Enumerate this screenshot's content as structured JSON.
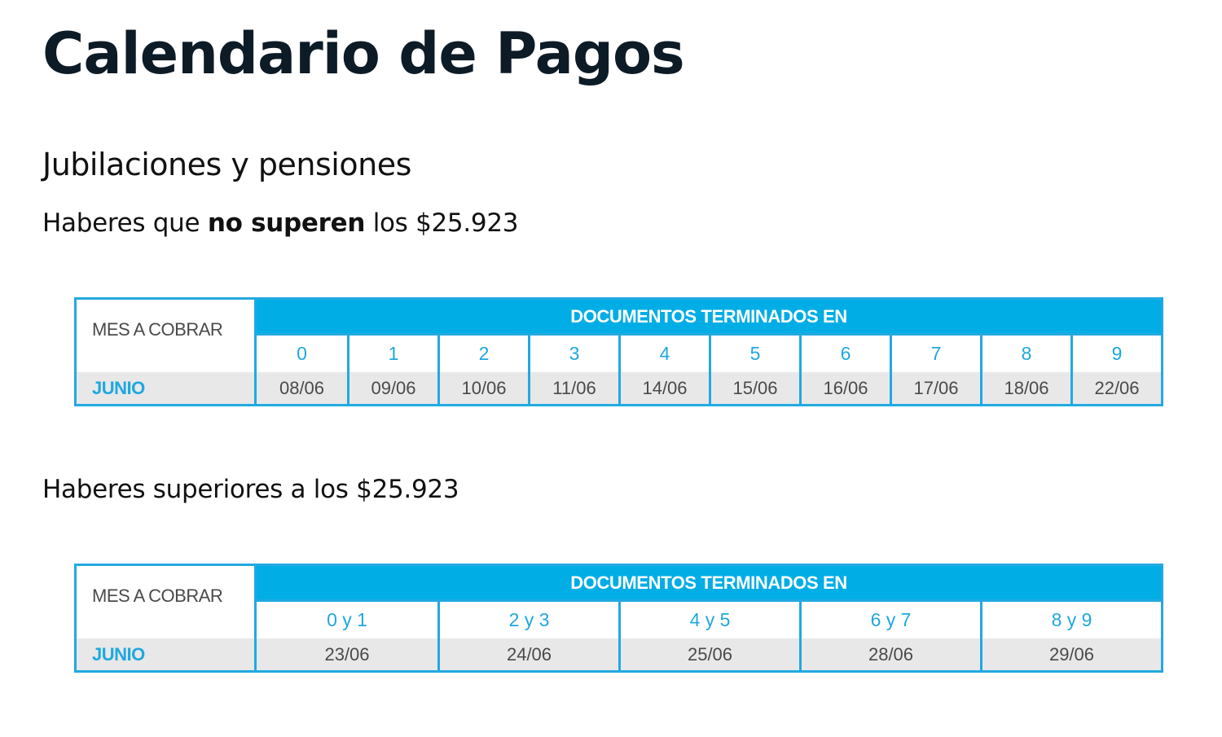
{
  "page": {
    "title": "Calendario de Pagos"
  },
  "section": {
    "title": "Jubilaciones y pensiones"
  },
  "colors": {
    "accent_blue": "#00ade5",
    "border_blue": "#22a9e1",
    "digit_blue": "#1fa8de",
    "row_gray": "#e8e8e8",
    "title_dark": "#0d1b26"
  },
  "table1": {
    "subtitle_prefix": "Haberes que ",
    "subtitle_bold": "no superen",
    "subtitle_suffix": " los $25.923",
    "mes_header": "MES A COBRAR",
    "doc_header": "DOCUMENTOS TERMINADOS EN",
    "month": "JUNIO",
    "columns": [
      "0",
      "1",
      "2",
      "3",
      "4",
      "5",
      "6",
      "7",
      "8",
      "9"
    ],
    "dates": [
      "08/06",
      "09/06",
      "10/06",
      "11/06",
      "14/06",
      "15/06",
      "16/06",
      "17/06",
      "18/06",
      "22/06"
    ]
  },
  "table2": {
    "subtitle": "Haberes superiores a los $25.923",
    "mes_header": "MES A COBRAR",
    "doc_header": "DOCUMENTOS TERMINADOS EN",
    "month": "JUNIO",
    "columns": [
      "0 y 1",
      "2 y 3",
      "4 y 5",
      "6 y 7",
      "8 y 9"
    ],
    "dates": [
      "23/06",
      "24/06",
      "25/06",
      "28/06",
      "29/06"
    ]
  }
}
